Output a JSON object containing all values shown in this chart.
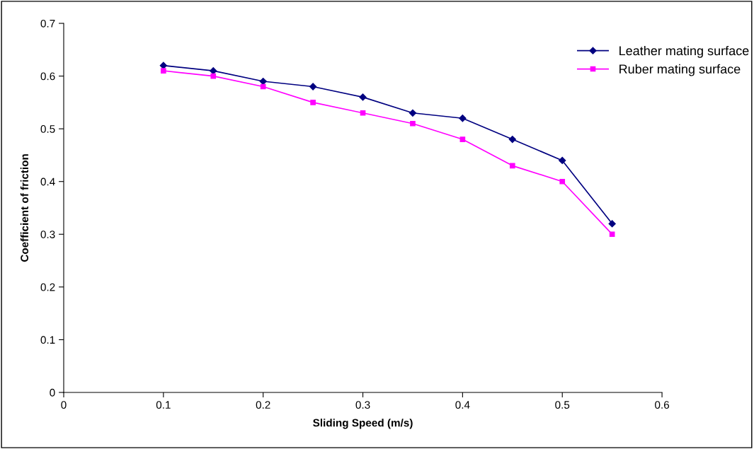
{
  "chart_data": {
    "type": "line",
    "xlabel": "Sliding Speed (m/s)",
    "ylabel": "Coefficient of friction",
    "x": [
      0.1,
      0.15,
      0.2,
      0.25,
      0.3,
      0.35,
      0.4,
      0.45,
      0.5,
      0.55
    ],
    "series": [
      {
        "name": "Leather mating surface",
        "color": "#000080",
        "marker": "diamond",
        "values": [
          0.62,
          0.61,
          0.59,
          0.58,
          0.56,
          0.53,
          0.52,
          0.48,
          0.44,
          0.32
        ]
      },
      {
        "name": "Ruber mating surface",
        "color": "#ff00ff",
        "marker": "square",
        "values": [
          0.61,
          0.6,
          0.58,
          0.55,
          0.53,
          0.51,
          0.48,
          0.43,
          0.4,
          0.3
        ]
      }
    ],
    "xlim": [
      0,
      0.6
    ],
    "xticks": [
      0,
      0.1,
      0.2,
      0.3,
      0.4,
      0.5,
      0.6
    ],
    "ylim": [
      0,
      0.7
    ],
    "yticks": [
      0,
      0.1,
      0.2,
      0.3,
      0.4,
      0.5,
      0.6,
      0.7
    ],
    "grid": false,
    "legend": "top right",
    "line_style": "solid"
  }
}
